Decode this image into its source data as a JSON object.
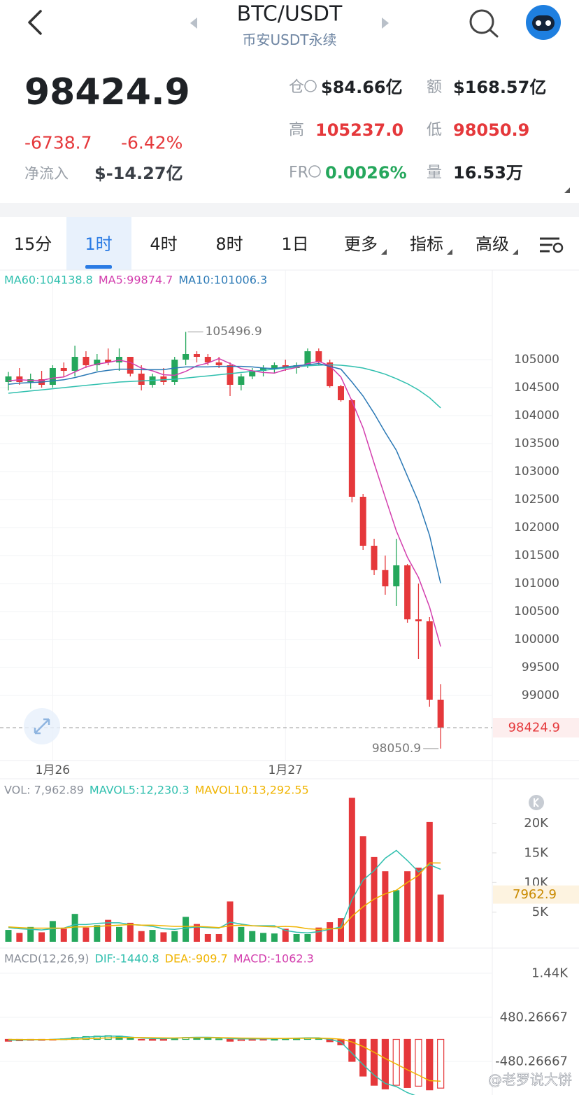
{
  "header": {
    "pair": "BTC/USDT",
    "subtitle": "币安USDT永续"
  },
  "ticker": {
    "price": "98424.9",
    "change": "-6738.7",
    "change_pct": "-6.42%",
    "netflow_label": "净流入",
    "netflow": "$-14.27亿",
    "stats": [
      {
        "label": "仓",
        "value": "$84.66亿",
        "color": "#1f2226"
      },
      {
        "label": "额",
        "value": "$168.57亿",
        "color": "#1f2226"
      },
      {
        "label": "高",
        "value": "105237.0",
        "color": "#e5383b"
      },
      {
        "label": "低",
        "value": "98050.9",
        "color": "#e5383b"
      },
      {
        "label": "FR",
        "value": "0.0026%",
        "color": "#25a75c"
      },
      {
        "label": "量",
        "value": "16.53万",
        "color": "#1f2226"
      }
    ]
  },
  "tabs": {
    "items": [
      "15分",
      "1时",
      "4时",
      "8时",
      "1日",
      "更多",
      "指标",
      "高级"
    ],
    "active": 1
  },
  "price_chart": {
    "type": "candlestick",
    "legend": [
      {
        "text": "MA60:104138.8",
        "color": "#2fbfae"
      },
      {
        "text": "MA5:99874.7",
        "color": "#d33fae"
      },
      {
        "text": "MA10:101006.3",
        "color": "#2a78b5"
      }
    ],
    "up_color": "#25a75c",
    "down_color": "#e5383b",
    "ylim": [
      97862.5,
      106612.5
    ],
    "yticks": [
      99000,
      99500,
      100000,
      100500,
      101000,
      101500,
      102000,
      102500,
      103000,
      103500,
      104000,
      104500,
      105000
    ],
    "grid": true,
    "categories": [
      null,
      null,
      null,
      null,
      "1月26",
      null,
      null,
      null,
      null,
      null,
      null,
      null,
      null,
      null,
      null,
      null,
      null,
      null,
      null,
      null,
      null,
      null,
      null,
      null,
      null,
      "1月27",
      null,
      null,
      null,
      null,
      null,
      null,
      null,
      null,
      null,
      null,
      null,
      null,
      null,
      null
    ],
    "candles": [
      [
        104600,
        104780,
        104450,
        104700
      ],
      [
        104700,
        104850,
        104550,
        104600
      ],
      [
        104600,
        104750,
        104480,
        104650
      ],
      [
        104650,
        104800,
        104500,
        104550
      ],
      [
        104550,
        104900,
        104500,
        104850
      ],
      [
        104850,
        104950,
        104700,
        104800
      ],
      [
        104800,
        105250,
        104700,
        105050
      ],
      [
        105050,
        105150,
        104850,
        104900
      ],
      [
        104900,
        105100,
        104800,
        105000
      ],
      [
        105000,
        105200,
        104900,
        104950
      ],
      [
        104950,
        105200,
        104800,
        105050
      ],
      [
        105050,
        105050,
        104700,
        104750
      ],
      [
        104750,
        104900,
        104450,
        104550
      ],
      [
        104550,
        104750,
        104500,
        104700
      ],
      [
        104700,
        104850,
        104550,
        104600
      ],
      [
        104600,
        105050,
        104550,
        105000
      ],
      [
        105000,
        105496.9,
        104900,
        105100
      ],
      [
        105100,
        105150,
        104950,
        105050
      ],
      [
        105050,
        105100,
        104900,
        104950
      ],
      [
        104950,
        105050,
        104850,
        104900
      ],
      [
        104900,
        104950,
        104350,
        104550
      ],
      [
        104550,
        104750,
        104450,
        104700
      ],
      [
        104700,
        104850,
        104650,
        104800
      ],
      [
        104800,
        104900,
        104700,
        104850
      ],
      [
        104850,
        104950,
        104750,
        104900
      ],
      [
        104900,
        105000,
        104800,
        104850
      ],
      [
        104850,
        104950,
        104750,
        104900
      ],
      [
        104900,
        105200,
        104850,
        105150
      ],
      [
        105150,
        105200,
        104900,
        104950
      ],
      [
        104950,
        105000,
        104500,
        104525
      ],
      [
        104525,
        104550,
        104250,
        104275
      ],
      [
        104275,
        104300,
        102450,
        102550
      ],
      [
        102550,
        102600,
        101600,
        101675
      ],
      [
        101675,
        101800,
        101150,
        101240
      ],
      [
        101240,
        101500,
        100800,
        100950
      ],
      [
        100950,
        101800,
        100600,
        101325
      ],
      [
        101325,
        101350,
        100300,
        100360
      ],
      [
        100360,
        101000,
        99650,
        100325
      ],
      [
        100325,
        100400,
        98800,
        98925
      ],
      [
        98925,
        99200,
        98050.9,
        98424.9
      ]
    ],
    "ma5": [
      104620,
      104640,
      104630,
      104630,
      104670,
      104690,
      104780,
      104870,
      104920,
      104950,
      104990,
      104950,
      104850,
      104800,
      104730,
      104720,
      104790,
      104890,
      104940,
      105020,
      104930,
      104840,
      104800,
      104770,
      104760,
      104820,
      104860,
      104930,
      104970,
      104890,
      104690,
      104260,
      103780,
      103150,
      102540,
      101940,
      101470,
      101110,
      100580,
      99874.7
    ],
    "ma10": [
      104560,
      104580,
      104590,
      104600,
      104620,
      104640,
      104680,
      104730,
      104780,
      104810,
      104830,
      104830,
      104820,
      104820,
      104820,
      104850,
      104870,
      104870,
      104870,
      104880,
      104880,
      104880,
      104870,
      104850,
      104840,
      104870,
      104890,
      104910,
      104930,
      104880,
      104830,
      104600,
      104350,
      104040,
      103700,
      103380,
      102920,
      102460,
      101860,
      101006.3
    ],
    "ma60": [
      104400,
      104420,
      104440,
      104460,
      104480,
      104500,
      104520,
      104540,
      104560,
      104580,
      104600,
      104610,
      104620,
      104630,
      104640,
      104650,
      104670,
      104690,
      104710,
      104730,
      104750,
      104770,
      104790,
      104810,
      104830,
      104850,
      104870,
      104890,
      104900,
      104910,
      104900,
      104880,
      104850,
      104800,
      104740,
      104660,
      104570,
      104460,
      104320,
      104138.8
    ],
    "high_label": "105496.9",
    "low_label": "98050.9",
    "last_price": {
      "value": 98424.9,
      "label": "98424.9"
    }
  },
  "volume_chart": {
    "type": "bar",
    "legend": [
      {
        "text": "VOL: 7,962.89",
        "color": "#8a8f99"
      },
      {
        "text": "MAVOL5:12,230.3",
        "color": "#2fbfae"
      },
      {
        "text": "MAVOL10:13,292.55",
        "color": "#f0b400"
      }
    ],
    "ylim": [
      0,
      27270
    ],
    "yticks": [
      {
        "value": 5000,
        "label": "5K"
      },
      {
        "value": 10000,
        "label": "10K"
      },
      {
        "value": 15000,
        "label": "15K"
      },
      {
        "value": 20000,
        "label": "20K"
      }
    ],
    "values": [
      2000,
      1500,
      2500,
      1600,
      3500,
      2200,
      4700,
      2400,
      2800,
      3700,
      2500,
      3200,
      1800,
      2000,
      1600,
      1800,
      4200,
      3000,
      1300,
      1300,
      6800,
      2500,
      1800,
      1500,
      1400,
      2200,
      1300,
      1300,
      2400,
      3300,
      4000,
      24300,
      17800,
      14300,
      11900,
      8700,
      11900,
      12500,
      20200,
      7962.89
    ],
    "mavol5": [
      2400,
      2200,
      2100,
      2000,
      2200,
      2300,
      2900,
      2900,
      3100,
      3200,
      3200,
      2900,
      2800,
      2600,
      2200,
      2100,
      2300,
      2500,
      2400,
      2300,
      3300,
      3000,
      2700,
      2700,
      2700,
      1900,
      1600,
      1500,
      1700,
      2100,
      2500,
      7100,
      10400,
      12000,
      14100,
      15400,
      13700,
      11800,
      13000,
      12230.3
    ],
    "mavol10": [
      2500,
      2400,
      2300,
      2300,
      2300,
      2300,
      2500,
      2500,
      2600,
      2700,
      2800,
      2900,
      2800,
      2800,
      2700,
      2600,
      2600,
      2600,
      2500,
      2400,
      2700,
      2800,
      2700,
      2600,
      2500,
      2600,
      2500,
      2200,
      2100,
      2200,
      2200,
      4300,
      5900,
      7200,
      8100,
      8700,
      10000,
      11200,
      13300,
      13292.55
    ],
    "last_label": {
      "value": 7962.89,
      "label": "7962.9"
    }
  },
  "macd_chart": {
    "type": "macd",
    "legend": [
      {
        "text": "MACD(12,26,9)",
        "color": "#8a8f99"
      },
      {
        "text": "DIF:-1440.8",
        "color": "#2fbfae"
      },
      {
        "text": "DEA:-909.7",
        "color": "#f0b400"
      },
      {
        "text": "MACD:-1062.3",
        "color": "#d33fae"
      }
    ],
    "ylim": [
      -1136,
      1913
    ],
    "yticks": [
      {
        "value": 1440,
        "label": "1.44K"
      },
      480.26667,
      -480.26667
    ],
    "macd": [
      -40,
      -30,
      -20,
      -20,
      -10,
      10,
      40,
      60,
      70,
      80,
      70,
      30,
      -10,
      -20,
      -20,
      10,
      40,
      30,
      20,
      10,
      -40,
      -30,
      -20,
      -10,
      0,
      10,
      10,
      30,
      20,
      -50,
      -120,
      -480,
      -800,
      -1000,
      -1080,
      -1000,
      -1050,
      -1020,
      -1100,
      -1062.3
    ],
    "dif": [
      -20,
      -15,
      -10,
      -8,
      0,
      10,
      30,
      50,
      60,
      70,
      70,
      50,
      30,
      20,
      15,
      25,
      40,
      45,
      45,
      40,
      15,
      10,
      10,
      10,
      15,
      20,
      25,
      35,
      35,
      0,
      -60,
      -300,
      -550,
      -780,
      -960,
      -1030,
      -1160,
      -1250,
      -1380,
      -1440.8
    ],
    "dea": [
      0,
      -3,
      -4,
      -5,
      -4,
      -1,
      5,
      14,
      23,
      32,
      40,
      42,
      40,
      36,
      32,
      31,
      33,
      35,
      37,
      38,
      33,
      29,
      25,
      22,
      21,
      21,
      22,
      24,
      27,
      21,
      5,
      -56,
      -155,
      -280,
      -416,
      -539,
      -663,
      -780,
      -900,
      -909.7
    ]
  },
  "watermark": "@老罗说大饼"
}
